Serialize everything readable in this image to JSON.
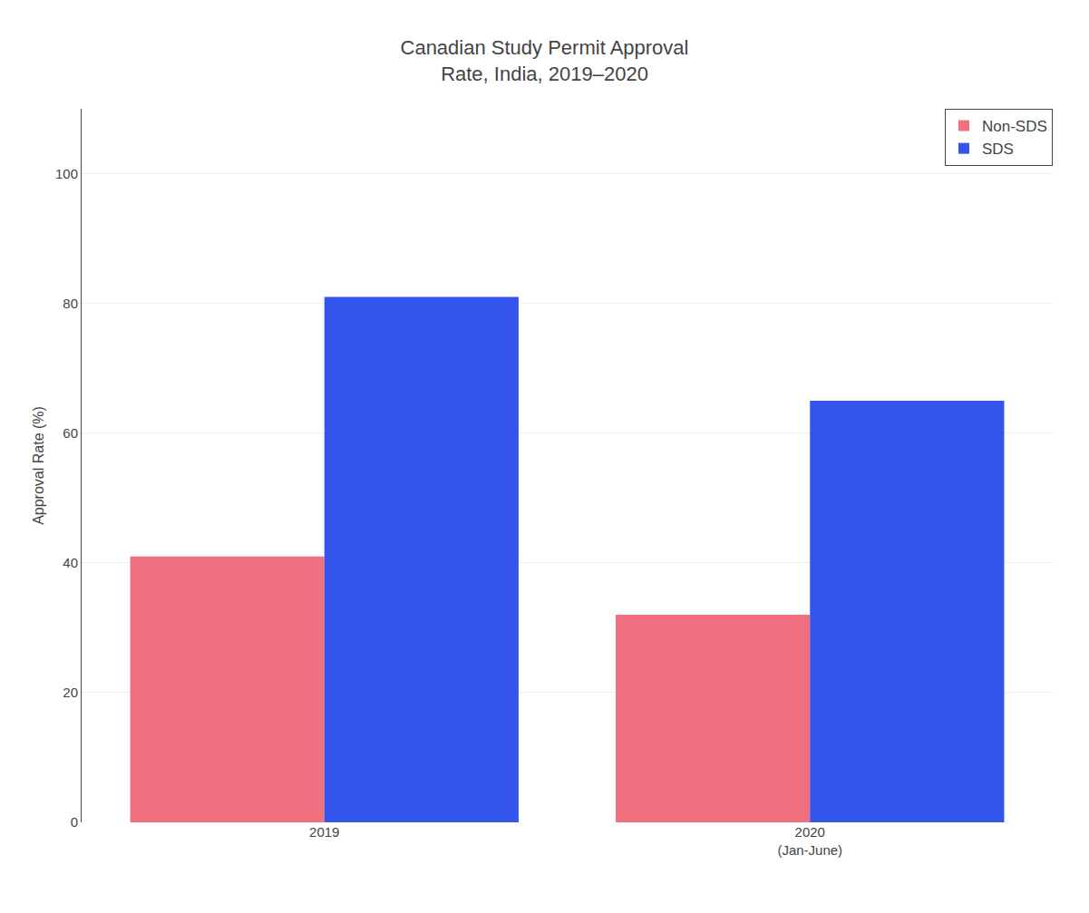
{
  "chart_data": {
    "type": "bar",
    "title": "Canadian Study Permit Approval\nRate, India, 2019–2020",
    "ylabel": "Approval Rate (%)",
    "categories": [
      "2019",
      "2020\n(Jan-June)"
    ],
    "series": [
      {
        "name": "Non-SDS",
        "color": "#F07080",
        "values": [
          41,
          32
        ]
      },
      {
        "name": "SDS",
        "color": "#3355EE",
        "values": [
          81,
          65
        ]
      }
    ],
    "ylim": [
      0,
      110
    ],
    "yticks": [
      0,
      20,
      40,
      60,
      80,
      100
    ],
    "grid": true,
    "legend": "upper right"
  }
}
